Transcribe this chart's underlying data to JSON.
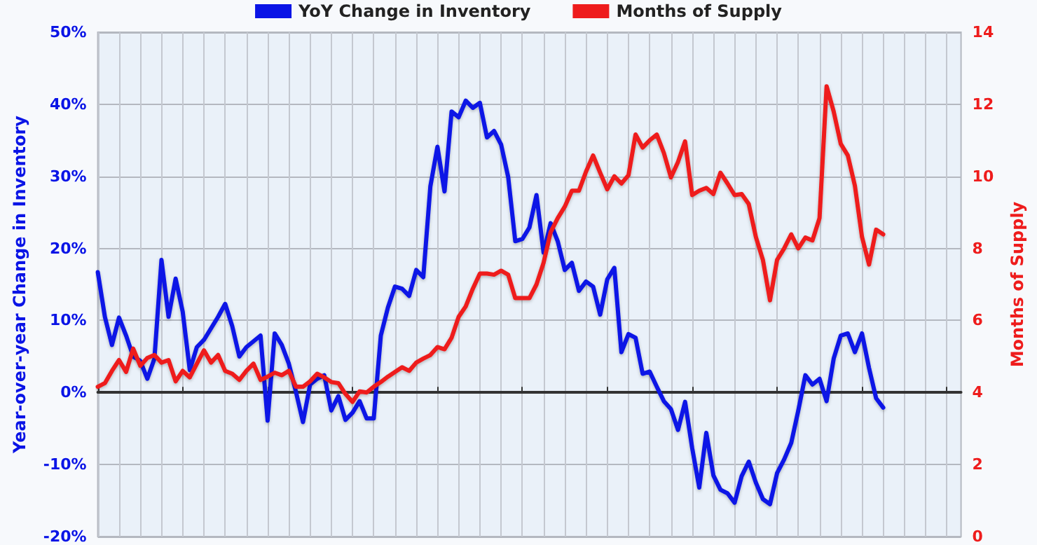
{
  "chart_data": {
    "type": "line",
    "ylabel": "Year-over-year Change in Inventory",
    "y2label": "Months of Supply",
    "categories": [
      null,
      null,
      null,
      null,
      null,
      null,
      null,
      null,
      null,
      null,
      null,
      null,
      null,
      null,
      null,
      null,
      null,
      null,
      null,
      null,
      null,
      null,
      null,
      null,
      null,
      null,
      null,
      null,
      null,
      null,
      null,
      null,
      null,
      null,
      null,
      null,
      null,
      null,
      null,
      null,
      null,
      null,
      null,
      null,
      null,
      null,
      null,
      null,
      null,
      null,
      null,
      null,
      null,
      null,
      null,
      null,
      null,
      null,
      null,
      null,
      null,
      null,
      null,
      null,
      null,
      null,
      null,
      null,
      null,
      null,
      null,
      null,
      null,
      null,
      null,
      null,
      null,
      null,
      null,
      null,
      null,
      null,
      null,
      null,
      null,
      null,
      null,
      null,
      null,
      null,
      null,
      null,
      null,
      null,
      null,
      null,
      null,
      null,
      null,
      null,
      null,
      null,
      null,
      null,
      null,
      null,
      null,
      null,
      null,
      null,
      null,
      null,
      null,
      null,
      null,
      null,
      null,
      null,
      null,
      null,
      null,
      null,
      null
    ],
    "series": [
      {
        "name": "YoY Change in Inventory",
        "color": "#0a14e6",
        "values": [
          16.7,
          10.5,
          6.6,
          10.4,
          7.9,
          5,
          4.4,
          1.9,
          4.7,
          18.4,
          10.5,
          15.8,
          11.2,
          3.1,
          6.3,
          7.3,
          8.9,
          10.5,
          12.3,
          9.2,
          5,
          6.3,
          7.1,
          7.9,
          -3.9,
          8.2,
          6.6,
          4,
          0.1,
          -4.1,
          1.1,
          1.9,
          2.4,
          -2.5,
          -0.5,
          -3.8,
          -2.8,
          -1.2,
          -3.6,
          -3.6,
          7.9,
          11.8,
          14.7,
          14.4,
          13.4,
          17,
          16,
          28.6,
          34.1,
          27.9,
          39,
          38.2,
          40.5,
          39.5,
          40.2,
          35.4,
          36.3,
          34.4,
          29.9,
          21,
          21.3,
          22.9,
          27.4,
          19.4,
          23.5,
          21,
          17,
          18,
          14.1,
          15.4,
          14.7,
          10.8,
          15.7,
          17.3,
          5.6,
          8.1,
          7.6,
          2.6,
          2.9,
          0.8,
          -1.2,
          -2.3,
          -5.2,
          -1.3,
          -7.7,
          -13.2,
          -5.6,
          -11.5,
          -13.5,
          -14,
          -15.3,
          -11.6,
          -9.6,
          -12.5,
          -14.8,
          -15.5,
          -11.2,
          -9.3,
          -7,
          -2.5,
          2.4,
          1.1,
          1.9,
          -1.2,
          4.7,
          7.9,
          8.2,
          5.6,
          8.2,
          3.4,
          -0.8,
          -2.1,
          null,
          null,
          null,
          null,
          null,
          null,
          null,
          null,
          null,
          null,
          null
        ]
      },
      {
        "name": "Months of Supply",
        "color": "#ee1c1c",
        "axis": "y2",
        "values": [
          4.16,
          4.26,
          4.6,
          4.9,
          4.57,
          5.22,
          4.74,
          4.96,
          5.04,
          4.83,
          4.9,
          4.31,
          4.6,
          4.42,
          4.8,
          5.17,
          4.83,
          5.04,
          4.6,
          4.52,
          4.35,
          4.6,
          4.8,
          4.35,
          4.44,
          4.55,
          4.48,
          4.6,
          4.16,
          4.16,
          4.31,
          4.52,
          4.42,
          4.29,
          4.26,
          3.96,
          3.74,
          4.03,
          4,
          4.16,
          4.29,
          4.44,
          4.57,
          4.7,
          4.6,
          4.83,
          4.94,
          5.04,
          5.26,
          5.2,
          5.52,
          6.1,
          6.39,
          6.88,
          7.3,
          7.3,
          7.27,
          7.38,
          7.27,
          6.62,
          6.62,
          6.62,
          7,
          7.6,
          8.45,
          8.84,
          9.16,
          9.6,
          9.6,
          10.13,
          10.58,
          10.1,
          9.64,
          10,
          9.8,
          10.03,
          11.16,
          10.8,
          11,
          11.16,
          10.65,
          9.97,
          10.4,
          10.97,
          9.48,
          9.6,
          9.68,
          9.51,
          10.1,
          9.8,
          9.48,
          9.51,
          9.23,
          8.32,
          7.68,
          6.56,
          7.68,
          8,
          8.39,
          8,
          8.3,
          8.22,
          8.84,
          12.5,
          11.8,
          10.9,
          10.58,
          9.74,
          8.32,
          7.55,
          8.52,
          8.39,
          null,
          null,
          null,
          null,
          null,
          null,
          null,
          null,
          null,
          null,
          null
        ]
      }
    ],
    "ylim": [
      -20,
      50
    ],
    "yticks": [
      {
        "value": -20,
        "label": "-20%"
      },
      {
        "value": -10,
        "label": "-10%"
      },
      {
        "value": 0,
        "label": "0%"
      },
      {
        "value": 10,
        "label": "10%"
      },
      {
        "value": 20,
        "label": "20%"
      },
      {
        "value": 30,
        "label": "30%"
      },
      {
        "value": 40,
        "label": "40%"
      },
      {
        "value": 50,
        "label": "50%"
      }
    ],
    "y2lim": [
      0,
      14
    ],
    "y2ticks": [
      0,
      2,
      4,
      6,
      8,
      10,
      12,
      14
    ],
    "tick_labels": "y",
    "grid": true,
    "legend": "top",
    "line_style": "solid"
  }
}
